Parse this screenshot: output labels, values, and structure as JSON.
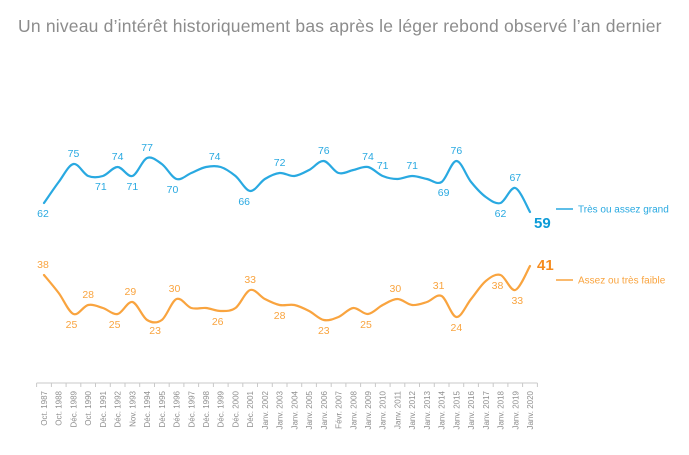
{
  "title": "Un niveau d’intérêt historiquement bas après le léger rebond observé l’an dernier",
  "colors": {
    "title_text": "#8c8c8c",
    "axis_line": "#c9c9c9",
    "axis_label": "#8f8f8f",
    "background": "#ffffff"
  },
  "chart_data": {
    "type": "line",
    "y_axis_hidden": true,
    "grid": false,
    "legend_position": "right",
    "smoothing": "spline",
    "categories": [
      "Oct. 1987",
      "Oct. 1988",
      "Déc. 1989",
      "Oct. 1990",
      "Déc. 1991",
      "Déc. 1992",
      "Nov. 1993",
      "Déc. 1994",
      "Déc. 1995",
      "Déc. 1996",
      "Déc. 1997",
      "Déc. 1998",
      "Déc. 1999",
      "Déc. 2000",
      "Déc. 2001",
      "Janv. 2002",
      "Janv. 2003",
      "Janv. 2004",
      "Janv. 2005",
      "Janv. 2006",
      "Févr. 2007",
      "Janv. 2008",
      "Janv. 2009",
      "Janv. 2010",
      "Janv. 2011",
      "Janv. 2012",
      "Janv. 2013",
      "Janv. 2014",
      "Janv. 2015",
      "Janv. 2016",
      "Janv. 2017",
      "Janv. 2018",
      "Janv. 2019",
      "Janv. 2020"
    ],
    "series": [
      {
        "name": "Très ou assez grand",
        "color": "#29a9e1",
        "bold_color": "#0c9bd7",
        "values": [
          62,
          69,
          75,
          71,
          71,
          74,
          71,
          77,
          75,
          70,
          72,
          74,
          74,
          71,
          66,
          70,
          72,
          71,
          73,
          76,
          72,
          73,
          74,
          71,
          70,
          71,
          70,
          69,
          76,
          69,
          64,
          62,
          67,
          59
        ],
        "labeled_points": [
          {
            "i": 0,
            "pos": "below",
            "dx": -1
          },
          {
            "i": 2,
            "pos": "above"
          },
          {
            "i": 4,
            "pos": "below",
            "dx": -2
          },
          {
            "i": 5,
            "pos": "above"
          },
          {
            "i": 6,
            "pos": "below"
          },
          {
            "i": 7,
            "pos": "above"
          },
          {
            "i": 9,
            "pos": "below",
            "dx": -4
          },
          {
            "i": 12,
            "pos": "above",
            "dx": -6
          },
          {
            "i": 14,
            "pos": "below",
            "dx": -6
          },
          {
            "i": 16,
            "pos": "above"
          },
          {
            "i": 19,
            "pos": "above"
          },
          {
            "i": 22,
            "pos": "above"
          },
          {
            "i": 23,
            "pos": "above"
          },
          {
            "i": 25,
            "pos": "above"
          },
          {
            "i": 27,
            "pos": "below",
            "dx": 2
          },
          {
            "i": 28,
            "pos": "above"
          },
          {
            "i": 31,
            "pos": "below"
          },
          {
            "i": 32,
            "pos": "above"
          }
        ],
        "final_label": "59"
      },
      {
        "name": "Assez ou très faible",
        "color": "#f9a43f",
        "bold_color": "#f68c1f",
        "values": [
          38,
          32,
          25,
          28,
          27,
          25,
          29,
          23,
          23,
          30,
          27,
          27,
          26,
          27,
          33,
          30,
          28,
          28,
          26,
          23,
          24,
          27,
          25,
          28,
          30,
          28,
          29,
          31,
          24,
          30,
          36,
          38,
          33,
          41
        ],
        "labeled_points": [
          {
            "i": 0,
            "pos": "above",
            "dx": -1
          },
          {
            "i": 2,
            "pos": "below",
            "dx": -2
          },
          {
            "i": 3,
            "pos": "above"
          },
          {
            "i": 5,
            "pos": "below",
            "dx": -3
          },
          {
            "i": 6,
            "pos": "above",
            "dx": -2
          },
          {
            "i": 7,
            "pos": "below",
            "dx": 8
          },
          {
            "i": 9,
            "pos": "above",
            "dx": -2
          },
          {
            "i": 12,
            "pos": "below",
            "dx": -3
          },
          {
            "i": 14,
            "pos": "above"
          },
          {
            "i": 16,
            "pos": "below"
          },
          {
            "i": 19,
            "pos": "below"
          },
          {
            "i": 22,
            "pos": "below",
            "dx": -2
          },
          {
            "i": 24,
            "pos": "above",
            "dx": -2
          },
          {
            "i": 27,
            "pos": "above",
            "dx": -3
          },
          {
            "i": 28,
            "pos": "below"
          },
          {
            "i": 31,
            "pos": "below",
            "dx": -3
          },
          {
            "i": 32,
            "pos": "below",
            "dx": 2
          }
        ],
        "final_label": "41"
      }
    ]
  }
}
